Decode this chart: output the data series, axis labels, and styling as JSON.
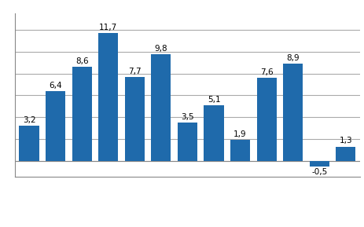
{
  "values": [
    3.2,
    6.4,
    8.6,
    11.7,
    7.7,
    9.8,
    3.5,
    5.1,
    1.9,
    7.6,
    8.9,
    -0.5,
    1.3
  ],
  "bar_color": "#1F6AAB",
  "ylim": [
    -1.5,
    13.5
  ],
  "label_fontsize": 7.5,
  "background_color": "#ffffff",
  "grid_color": "#aaaaaa",
  "label_color": "#000000",
  "bar_width": 0.75,
  "grid_linewidth": 0.8,
  "spine_color": "#888888"
}
